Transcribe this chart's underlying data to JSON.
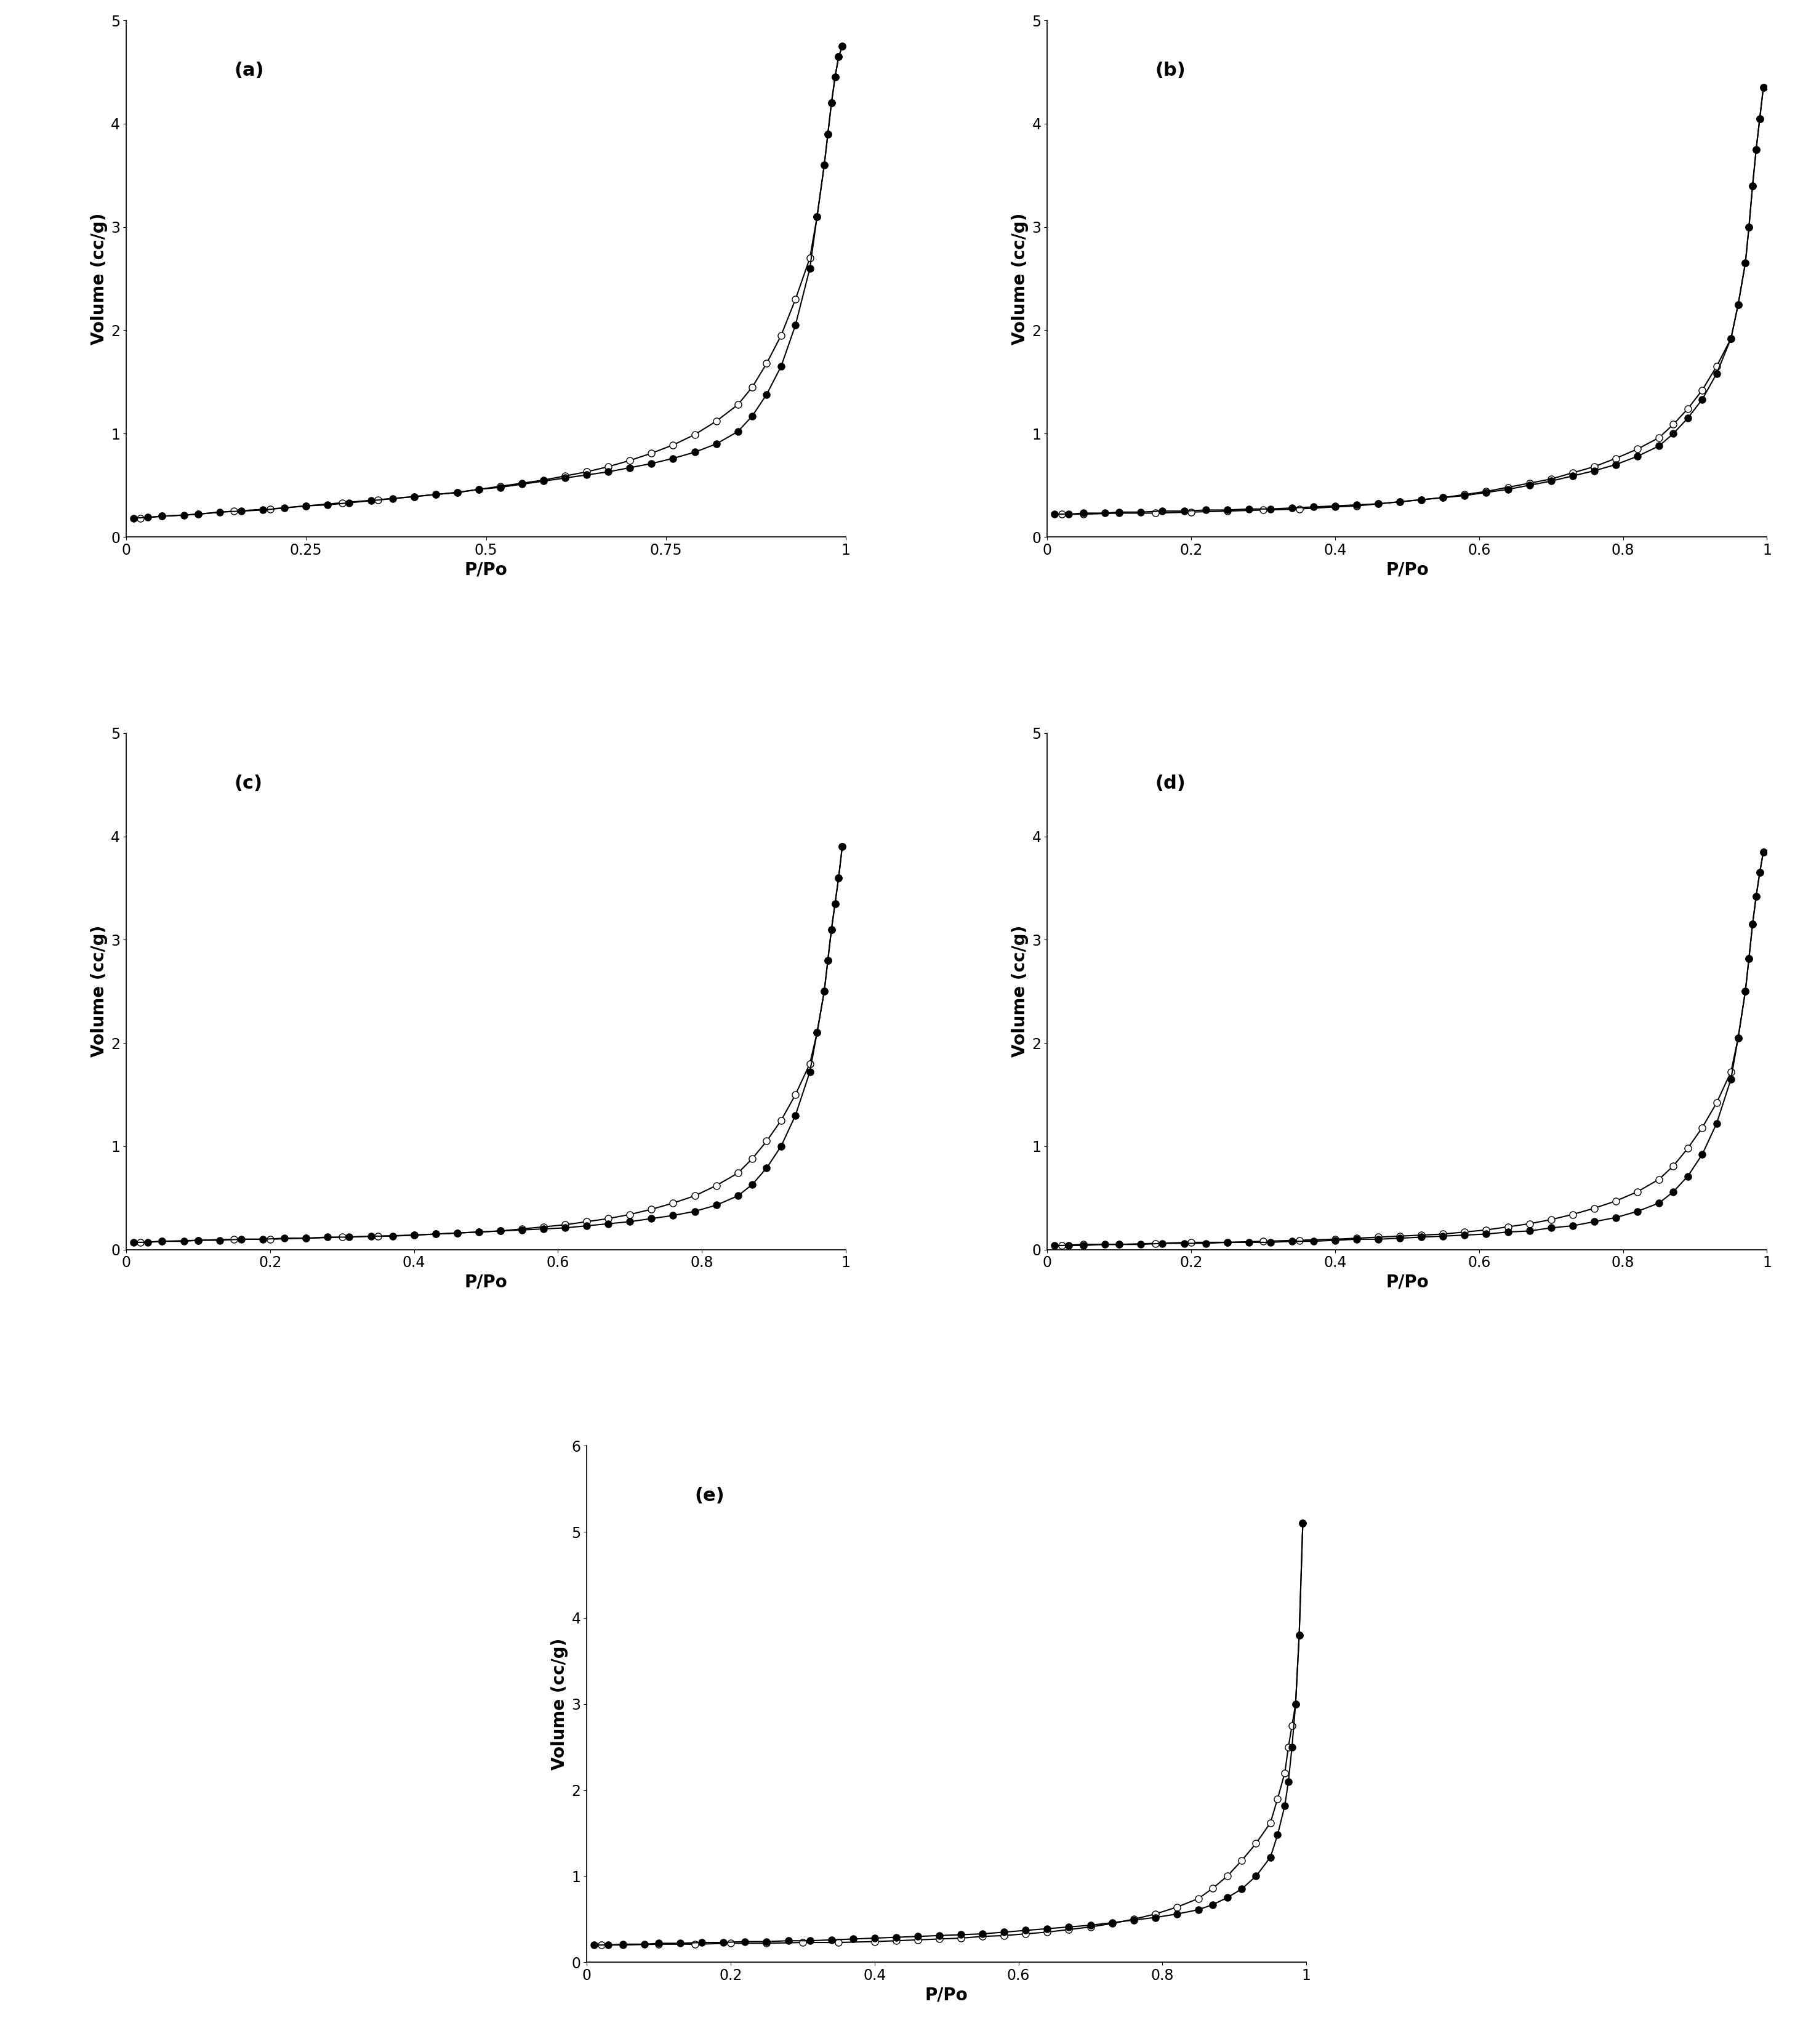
{
  "panels": [
    {
      "label": "(a)",
      "xlabel": "P/Po",
      "ylabel": "Volume (cc/g)",
      "xlim": [
        0,
        1.0
      ],
      "ylim": [
        0,
        5
      ],
      "yticks": [
        0,
        1,
        2,
        3,
        4,
        5
      ],
      "xticks": [
        0,
        0.25,
        0.5,
        0.75,
        1
      ],
      "xticklabels": [
        "0",
        "0.25",
        "0.5",
        "0.75",
        "1"
      ],
      "adsorption_x": [
        0.01,
        0.03,
        0.05,
        0.08,
        0.1,
        0.13,
        0.16,
        0.19,
        0.22,
        0.25,
        0.28,
        0.31,
        0.34,
        0.37,
        0.4,
        0.43,
        0.46,
        0.49,
        0.52,
        0.55,
        0.58,
        0.61,
        0.64,
        0.67,
        0.7,
        0.73,
        0.76,
        0.79,
        0.82,
        0.85,
        0.87,
        0.89,
        0.91,
        0.93,
        0.95,
        0.96,
        0.97,
        0.975,
        0.98,
        0.985,
        0.99,
        0.995
      ],
      "adsorption_y": [
        0.18,
        0.19,
        0.2,
        0.21,
        0.22,
        0.24,
        0.25,
        0.26,
        0.28,
        0.3,
        0.31,
        0.33,
        0.35,
        0.37,
        0.39,
        0.41,
        0.43,
        0.46,
        0.48,
        0.51,
        0.54,
        0.57,
        0.6,
        0.63,
        0.67,
        0.71,
        0.76,
        0.82,
        0.9,
        1.02,
        1.17,
        1.38,
        1.65,
        2.05,
        2.6,
        3.1,
        3.6,
        3.9,
        4.2,
        4.45,
        4.65,
        4.75
      ],
      "desorption_x": [
        0.995,
        0.99,
        0.985,
        0.98,
        0.975,
        0.97,
        0.96,
        0.95,
        0.93,
        0.91,
        0.89,
        0.87,
        0.85,
        0.82,
        0.79,
        0.76,
        0.73,
        0.7,
        0.67,
        0.64,
        0.61,
        0.58,
        0.55,
        0.52,
        0.49,
        0.46,
        0.43,
        0.4,
        0.35,
        0.3,
        0.25,
        0.2,
        0.15,
        0.1,
        0.05,
        0.02
      ],
      "desorption_y": [
        4.75,
        4.65,
        4.45,
        4.2,
        3.9,
        3.6,
        3.1,
        2.7,
        2.3,
        1.95,
        1.68,
        1.45,
        1.28,
        1.12,
        0.99,
        0.89,
        0.81,
        0.74,
        0.68,
        0.63,
        0.59,
        0.55,
        0.52,
        0.49,
        0.46,
        0.43,
        0.41,
        0.39,
        0.36,
        0.33,
        0.3,
        0.27,
        0.25,
        0.22,
        0.2,
        0.18
      ]
    },
    {
      "label": "(b)",
      "xlabel": "P/Po",
      "ylabel": "Volume (cc/g)",
      "xlim": [
        0,
        1.0
      ],
      "ylim": [
        0,
        5
      ],
      "yticks": [
        0,
        1,
        2,
        3,
        4,
        5
      ],
      "xticks": [
        0,
        0.2,
        0.4,
        0.6,
        0.8,
        1.0
      ],
      "xticklabels": [
        "0",
        "0.2",
        "0.4",
        "0.6",
        "0.8",
        "1"
      ],
      "adsorption_x": [
        0.01,
        0.03,
        0.05,
        0.08,
        0.1,
        0.13,
        0.16,
        0.19,
        0.22,
        0.25,
        0.28,
        0.31,
        0.34,
        0.37,
        0.4,
        0.43,
        0.46,
        0.49,
        0.52,
        0.55,
        0.58,
        0.61,
        0.64,
        0.67,
        0.7,
        0.73,
        0.76,
        0.79,
        0.82,
        0.85,
        0.87,
        0.89,
        0.91,
        0.93,
        0.95,
        0.96,
        0.97,
        0.975,
        0.98,
        0.985,
        0.99,
        0.995
      ],
      "adsorption_y": [
        0.22,
        0.22,
        0.23,
        0.23,
        0.24,
        0.24,
        0.25,
        0.25,
        0.26,
        0.26,
        0.27,
        0.27,
        0.28,
        0.29,
        0.3,
        0.31,
        0.32,
        0.34,
        0.36,
        0.38,
        0.4,
        0.43,
        0.46,
        0.5,
        0.54,
        0.59,
        0.64,
        0.7,
        0.78,
        0.88,
        1.0,
        1.15,
        1.33,
        1.58,
        1.92,
        2.25,
        2.65,
        3.0,
        3.4,
        3.75,
        4.05,
        4.35
      ],
      "desorption_x": [
        0.995,
        0.99,
        0.985,
        0.98,
        0.975,
        0.97,
        0.96,
        0.95,
        0.93,
        0.91,
        0.89,
        0.87,
        0.85,
        0.82,
        0.79,
        0.76,
        0.73,
        0.7,
        0.67,
        0.64,
        0.61,
        0.58,
        0.55,
        0.52,
        0.49,
        0.46,
        0.43,
        0.4,
        0.35,
        0.3,
        0.25,
        0.2,
        0.15,
        0.1,
        0.05,
        0.02
      ],
      "desorption_y": [
        4.35,
        4.05,
        3.75,
        3.4,
        3.0,
        2.65,
        2.25,
        1.92,
        1.65,
        1.42,
        1.24,
        1.09,
        0.96,
        0.85,
        0.76,
        0.68,
        0.62,
        0.56,
        0.52,
        0.48,
        0.44,
        0.41,
        0.38,
        0.36,
        0.34,
        0.32,
        0.3,
        0.29,
        0.27,
        0.26,
        0.25,
        0.24,
        0.23,
        0.23,
        0.22,
        0.22
      ]
    },
    {
      "label": "(c)",
      "xlabel": "P/Po",
      "ylabel": "Volume (cc/g)",
      "xlim": [
        0,
        1.0
      ],
      "ylim": [
        0,
        5
      ],
      "yticks": [
        0,
        1,
        2,
        3,
        4,
        5
      ],
      "xticks": [
        0,
        0.2,
        0.4,
        0.6,
        0.8,
        1.0
      ],
      "xticklabels": [
        "0",
        "0.2",
        "0.4",
        "0.6",
        "0.8",
        "1"
      ],
      "adsorption_x": [
        0.01,
        0.03,
        0.05,
        0.08,
        0.1,
        0.13,
        0.16,
        0.19,
        0.22,
        0.25,
        0.28,
        0.31,
        0.34,
        0.37,
        0.4,
        0.43,
        0.46,
        0.49,
        0.52,
        0.55,
        0.58,
        0.61,
        0.64,
        0.67,
        0.7,
        0.73,
        0.76,
        0.79,
        0.82,
        0.85,
        0.87,
        0.89,
        0.91,
        0.93,
        0.95,
        0.96,
        0.97,
        0.975,
        0.98,
        0.985,
        0.99,
        0.995
      ],
      "adsorption_y": [
        0.07,
        0.07,
        0.08,
        0.08,
        0.09,
        0.09,
        0.1,
        0.1,
        0.11,
        0.11,
        0.12,
        0.12,
        0.13,
        0.13,
        0.14,
        0.15,
        0.16,
        0.17,
        0.18,
        0.19,
        0.2,
        0.21,
        0.23,
        0.25,
        0.27,
        0.3,
        0.33,
        0.37,
        0.43,
        0.52,
        0.63,
        0.79,
        1.0,
        1.3,
        1.72,
        2.1,
        2.5,
        2.8,
        3.1,
        3.35,
        3.6,
        3.9
      ],
      "desorption_x": [
        0.995,
        0.99,
        0.985,
        0.98,
        0.975,
        0.97,
        0.96,
        0.95,
        0.93,
        0.91,
        0.89,
        0.87,
        0.85,
        0.82,
        0.79,
        0.76,
        0.73,
        0.7,
        0.67,
        0.64,
        0.61,
        0.58,
        0.55,
        0.52,
        0.49,
        0.46,
        0.43,
        0.4,
        0.35,
        0.3,
        0.25,
        0.2,
        0.15,
        0.1,
        0.05,
        0.02
      ],
      "desorption_y": [
        3.9,
        3.6,
        3.35,
        3.1,
        2.8,
        2.5,
        2.1,
        1.8,
        1.5,
        1.25,
        1.05,
        0.88,
        0.74,
        0.62,
        0.52,
        0.45,
        0.39,
        0.34,
        0.3,
        0.27,
        0.24,
        0.22,
        0.2,
        0.18,
        0.17,
        0.16,
        0.15,
        0.14,
        0.13,
        0.12,
        0.11,
        0.1,
        0.1,
        0.09,
        0.08,
        0.07
      ]
    },
    {
      "label": "(d)",
      "xlabel": "P/Po",
      "ylabel": "Volume (cc/g)",
      "xlim": [
        0,
        1.0
      ],
      "ylim": [
        0,
        5
      ],
      "yticks": [
        0,
        1,
        2,
        3,
        4,
        5
      ],
      "xticks": [
        0,
        0.2,
        0.4,
        0.6,
        0.8,
        1.0
      ],
      "xticklabels": [
        "0",
        "0.2",
        "0.4",
        "0.6",
        "0.8",
        "1"
      ],
      "adsorption_x": [
        0.01,
        0.03,
        0.05,
        0.08,
        0.1,
        0.13,
        0.16,
        0.19,
        0.22,
        0.25,
        0.28,
        0.31,
        0.34,
        0.37,
        0.4,
        0.43,
        0.46,
        0.49,
        0.52,
        0.55,
        0.58,
        0.61,
        0.64,
        0.67,
        0.7,
        0.73,
        0.76,
        0.79,
        0.82,
        0.85,
        0.87,
        0.89,
        0.91,
        0.93,
        0.95,
        0.96,
        0.97,
        0.975,
        0.98,
        0.985,
        0.99,
        0.995
      ],
      "adsorption_y": [
        0.04,
        0.04,
        0.04,
        0.05,
        0.05,
        0.05,
        0.06,
        0.06,
        0.06,
        0.07,
        0.07,
        0.07,
        0.08,
        0.08,
        0.09,
        0.1,
        0.1,
        0.11,
        0.12,
        0.13,
        0.14,
        0.15,
        0.17,
        0.18,
        0.21,
        0.23,
        0.27,
        0.31,
        0.37,
        0.45,
        0.56,
        0.71,
        0.92,
        1.22,
        1.65,
        2.05,
        2.5,
        2.82,
        3.15,
        3.42,
        3.65,
        3.85
      ],
      "desorption_x": [
        0.995,
        0.99,
        0.985,
        0.98,
        0.975,
        0.97,
        0.96,
        0.95,
        0.93,
        0.91,
        0.89,
        0.87,
        0.85,
        0.82,
        0.79,
        0.76,
        0.73,
        0.7,
        0.67,
        0.64,
        0.61,
        0.58,
        0.55,
        0.52,
        0.49,
        0.46,
        0.43,
        0.4,
        0.35,
        0.3,
        0.25,
        0.2,
        0.15,
        0.1,
        0.05,
        0.02
      ],
      "desorption_y": [
        3.85,
        3.65,
        3.42,
        3.15,
        2.82,
        2.5,
        2.05,
        1.72,
        1.42,
        1.18,
        0.98,
        0.81,
        0.68,
        0.56,
        0.47,
        0.4,
        0.34,
        0.29,
        0.25,
        0.22,
        0.19,
        0.17,
        0.15,
        0.14,
        0.13,
        0.12,
        0.11,
        0.1,
        0.09,
        0.08,
        0.07,
        0.07,
        0.06,
        0.05,
        0.05,
        0.04
      ]
    },
    {
      "label": "(e)",
      "xlabel": "P/Po",
      "ylabel": "Volume (cc/g)",
      "xlim": [
        0,
        1.0
      ],
      "ylim": [
        0,
        6
      ],
      "yticks": [
        0,
        1,
        2,
        3,
        4,
        5,
        6
      ],
      "xticks": [
        0,
        0.2,
        0.4,
        0.6,
        0.8,
        1.0
      ],
      "xticklabels": [
        "0",
        "0.2",
        "0.4",
        "0.6",
        "0.8",
        "1"
      ],
      "adsorption_x": [
        0.01,
        0.03,
        0.05,
        0.08,
        0.1,
        0.13,
        0.16,
        0.19,
        0.22,
        0.25,
        0.28,
        0.31,
        0.34,
        0.37,
        0.4,
        0.43,
        0.46,
        0.49,
        0.52,
        0.55,
        0.58,
        0.61,
        0.64,
        0.67,
        0.7,
        0.73,
        0.76,
        0.79,
        0.82,
        0.85,
        0.87,
        0.89,
        0.91,
        0.93,
        0.95,
        0.96,
        0.97,
        0.975,
        0.98,
        0.985,
        0.99,
        0.995
      ],
      "adsorption_y": [
        0.2,
        0.2,
        0.21,
        0.21,
        0.22,
        0.22,
        0.23,
        0.23,
        0.24,
        0.24,
        0.25,
        0.25,
        0.26,
        0.27,
        0.28,
        0.29,
        0.3,
        0.31,
        0.32,
        0.33,
        0.35,
        0.37,
        0.39,
        0.41,
        0.43,
        0.46,
        0.49,
        0.52,
        0.56,
        0.61,
        0.67,
        0.75,
        0.85,
        1.0,
        1.22,
        1.48,
        1.82,
        2.1,
        2.5,
        3.0,
        3.8,
        5.1
      ],
      "desorption_x": [
        0.995,
        0.99,
        0.985,
        0.98,
        0.975,
        0.97,
        0.96,
        0.95,
        0.93,
        0.91,
        0.89,
        0.87,
        0.85,
        0.82,
        0.79,
        0.76,
        0.73,
        0.7,
        0.67,
        0.64,
        0.61,
        0.58,
        0.55,
        0.52,
        0.49,
        0.46,
        0.43,
        0.4,
        0.35,
        0.3,
        0.25,
        0.2,
        0.15,
        0.1,
        0.05,
        0.02
      ],
      "desorption_y": [
        5.1,
        3.8,
        3.0,
        2.75,
        2.5,
        2.2,
        1.9,
        1.62,
        1.38,
        1.18,
        1.0,
        0.86,
        0.74,
        0.64,
        0.56,
        0.5,
        0.45,
        0.41,
        0.38,
        0.35,
        0.33,
        0.31,
        0.3,
        0.28,
        0.27,
        0.26,
        0.25,
        0.24,
        0.23,
        0.23,
        0.22,
        0.22,
        0.21,
        0.21,
        0.2,
        0.2
      ]
    }
  ],
  "marker_size": 8,
  "line_color": "#000000",
  "line_width": 1.5,
  "font_size_label": 20,
  "font_size_tick": 17,
  "font_size_panel_label": 22,
  "background_color": "#ffffff"
}
